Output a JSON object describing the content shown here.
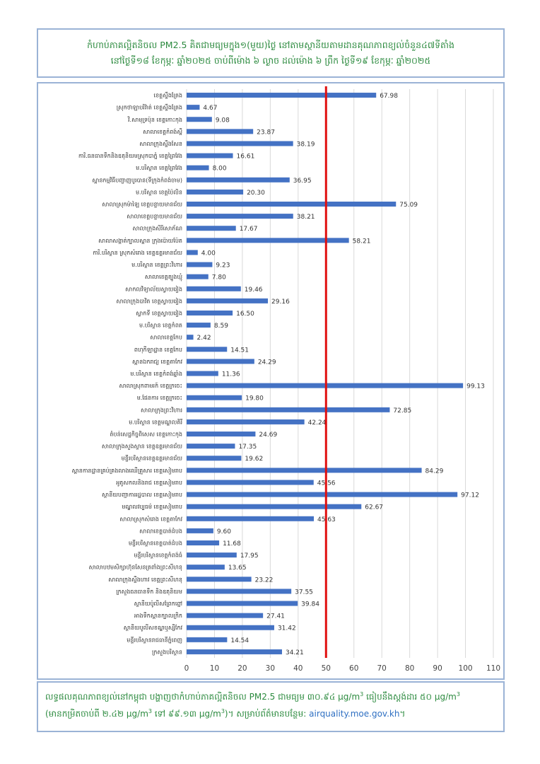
{
  "header": {
    "line1": "កំហាប់ភាគល្អិតនិចល PM2.5 គិតជាមធ្យមក្នុង១(មួយ)ថ្ងៃ នៅតាមស្ថានីយតាមដានគុណភាពខ្យល់ចំនួន៤៧ទីតាំង",
    "line2": "នៅថ្ងៃទី១៨ ខែកុម្ភៈ ឆ្នាំ២០២៥ ចាប់ពីម៉ោង ៦ ល្ងាច ដល់ម៉ោង ៦ ព្រឹក ថ្ងៃទី១៩ ខែកុម្ភៈ ឆ្នាំ២០២៥"
  },
  "chart_data": {
    "type": "bar",
    "orientation": "horizontal",
    "categories": [
      "ខេត្តស្ទឹងត្រែង",
      "ស្រុកថាឡាបរិវ៉ាត់ ខេត្តស្ទឹងត្រែង",
      "វិ.សាមុទ្រប៉ុន ខេត្តកោះកុង",
      "សាលាខេត្តកំពង់ស្ពឺ",
      "សាលាក្រុងស្ទឹងសែន",
      "ការិ.ធនធានទឹកនិងឧតុនិយមស្រុកបាភ្នំ ខេត្តព្រៃវែង",
      "ម.បរិស្ថាន ខេត្តព្រៃវែង",
      "ស្ពានកម្មវិធីបញ្ចាញបូរបាន(ទីក្រុងកំពង់ចាម)",
      "ម.បរិស្ថាន ខេត្តប៉ៃលិន",
      "សាលាស្រុកម៉ាឡៃ ខេត្តបន្ទាយមានជ័យ",
      "សាលាខេត្តបន្ទាយមានជ័យ",
      "សាលាក្រុងសិរីសោភ័ណ",
      "សាលាសង្កាត់ក្បាលស្ពាន ក្រុងប៉ោយប៉ែត",
      "ការិ.បរិស្ថាន ស្រុកសំរោង ខេត្តឧត្តរមានជ័យ",
      "ម.បរិស្ថាន ខេត្តព្រះវិហារ",
      "សាលាខេត្តត្បូងឃ្មុំ",
      "សាកលវិទ្យាល័យស្វាយរៀង",
      "សាលាក្រុងបាវិត ខេត្តស្វាយរៀង",
      "ស្លាកទី ខេត្តស្វាយរៀង",
      "ម.បរិស្ថាន ខេត្តកំពត",
      "សាលាខេត្តកែប",
      "ពហុកីឡាដ្ឋាន ខេត្តកែប",
      "ស្ពានឯករាជ្យ ខេត្តតាកែវ",
      "ម.បរិស្ថាន ខេត្តកំពង់ឆ្នាំង",
      "សាលាស្រុកពាមរក៍ ខេត្តក្រចេះ",
      "ម.ផែនការ ខេត្តក្រចេះ",
      "សាលាក្រុងព្រះវិហារ",
      "ម.បរិស្ថាន ខេត្តមណ្ឌលគិរី",
      "តំបន់សេដ្ឋកិច្ចពិសេស ខេត្តកោះកុង",
      "សាលាក្រុងសួងស្ថាន ខេត្តឧត្តរមានជ័យ",
      "មន្ទីរបរិស្ថានខេត្តឧត្តរមានជ័យ",
      "ស្ពានកានដ្ឋានគ្រប់គ្រងលាងឈើគ្រួសារ ខេត្តសៀមរាប",
      "អូតូសកលនិងរាជ ខេត្តសៀមរាប",
      "ស្ថានីយបញ្ជាការរដ្ឋបាល ខេត្តសៀមរាប",
      "មណ្ឌលវប្បធម៌ ខេត្តសៀមរាប",
      "សាលាស្រុកសំរោង ខេត្តតាកែវ",
      "សាលាខេត្តបាត់ដំបង",
      "មន្ទីរបរិស្ថានខេត្តបាត់ដំបង",
      "មន្ទីរបរិស្ថានខេត្តកំពង់ធំ",
      "សាលាបឋមសិក្សាហ៊ុនសែនត្រពាំងព្រះសីហនុ",
      "សាលាក្រុងស្ទឹងហាវ ខេត្តព្រះសីហនុ",
      "ក្រសួងធនធានទឹក និងឧតុនិយម",
      "ស្ថានីយប៉ូលីសព្រែកព្នៅ",
      "អាងទឹកស្ពានក្បាលក្រិក",
      "ស្ថានីយបូលីសខណ្ឌឬស្សីកែវ",
      "មន្ទីរបរិស្ថានរាជធានីភ្នំពេញ",
      "ក្រសួងបរិស្ថាន"
    ],
    "values": [
      67.98,
      4.67,
      9.08,
      23.87,
      38.19,
      16.61,
      8.0,
      36.95,
      20.3,
      75.09,
      38.21,
      17.67,
      58.21,
      4.0,
      9.23,
      7.8,
      19.46,
      29.16,
      16.5,
      8.59,
      2.42,
      14.51,
      24.29,
      11.36,
      99.13,
      19.8,
      72.85,
      42.24,
      24.69,
      17.35,
      19.62,
      84.29,
      45.56,
      97.12,
      62.67,
      45.63,
      9.6,
      11.68,
      17.95,
      13.65,
      23.22,
      37.55,
      39.84,
      27.41,
      31.42,
      14.54,
      34.21
    ],
    "value_labels": [
      "67.98",
      "4.67",
      "9.08",
      "23.87",
      "38.19",
      "16.61",
      "8.00",
      "36.95",
      "20.30",
      "75.09",
      "38.21",
      "17.67",
      "58.21",
      "4.00",
      "9.23",
      "7.80",
      "19.46",
      "29.16",
      "16.50",
      "8.59",
      "2.42",
      "14.51",
      "24.29",
      "11.36",
      "99.13",
      "19.80",
      "72.85",
      "42.24",
      "24.69",
      "17.35",
      "19.62",
      "84.29",
      "45.56",
      "97.12",
      "62.67",
      "45.63",
      "9.60",
      "11.68",
      "17.95",
      "13.65",
      "23.22",
      "37.55",
      "39.84",
      "27.41",
      "31.42",
      "14.54",
      "34.21"
    ],
    "x_ticks": [
      "0",
      "10",
      "20",
      "30",
      "40",
      "50",
      "60",
      "70",
      "80",
      "90",
      "100",
      "110"
    ],
    "xlim": [
      0,
      110
    ],
    "threshold": 50,
    "title": "",
    "xlabel": "",
    "ylabel": "",
    "grid": true,
    "colors": {
      "bar": "#4472c4",
      "threshold": "#e01010",
      "grid": "#d9d9d9"
    }
  },
  "footer": {
    "line1_a": "លទ្ធផលគុណភាពខ្យល់នៅកម្ពុជា បង្ហាញថាកំហាប់ភាគល្អិតនិចល PM2.5 ជាមធ្យម ៣០.៩៤ μg/m",
    "line1_b": " ធៀបនឹងស្តង់ដារ ៥០ μg/m",
    "line2_a": "(មានកម្រិតចាប់ពី ២.៤២ μg/m",
    "line2_b": " ទៅ ៩៩.១៣ μg/m",
    "line2_c": ")។ សម្រាប់ព័ត៌មានបន្ថែម: ",
    "sup": "3",
    "link": "airquality.moe.gov.kh",
    "line2_end": "។"
  }
}
